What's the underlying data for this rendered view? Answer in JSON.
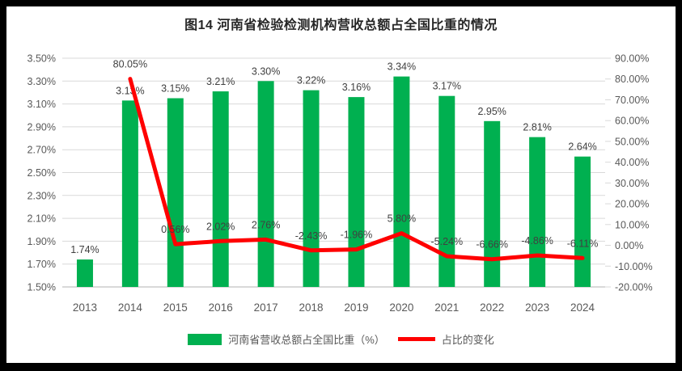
{
  "title": "图14 河南省检验检测机构营收总额占全国比重的情况",
  "colors": {
    "bar": "#00B050",
    "line": "#FF0000",
    "grid": "#D9D9D9",
    "axis_text": "#595959",
    "data_label_text": "#404040",
    "title_text": "#262626",
    "frame": "#000000",
    "background": "#FFFFFF"
  },
  "chart_data": {
    "type": "bar",
    "subtype": "combo-bar-line-dual-axis",
    "title": "图14 河南省检验检测机构营收总额占全国比重的情况",
    "categories": [
      "2013",
      "2014",
      "2015",
      "2016",
      "2017",
      "2018",
      "2019",
      "2020",
      "2021",
      "2022",
      "2023",
      "2024"
    ],
    "series": [
      {
        "name": "河南省营收总额占全国比重（%）",
        "type": "bar",
        "axis": "left",
        "color": "#00B050",
        "values": [
          1.74,
          3.13,
          3.15,
          3.21,
          3.3,
          3.22,
          3.16,
          3.34,
          3.17,
          2.95,
          2.81,
          2.64
        ],
        "labels": [
          "1.74%",
          "3.13%",
          "3.15%",
          "3.21%",
          "3.30%",
          "3.22%",
          "3.16%",
          "3.34%",
          "3.17%",
          "2.95%",
          "2.81%",
          "2.64%"
        ]
      },
      {
        "name": "占比的变化",
        "type": "line",
        "axis": "right",
        "color": "#FF0000",
        "values": [
          null,
          80.05,
          0.56,
          2.02,
          2.76,
          -2.43,
          -1.96,
          5.8,
          -5.24,
          -6.66,
          -4.86,
          -6.11
        ],
        "labels": [
          null,
          "80.05%",
          "0.56%",
          "2.02%",
          "2.76%",
          "-2.43%",
          "-1.96%",
          "5.80%",
          "-5.24%",
          "-6.66%",
          "-4.86%",
          "-6.11%"
        ]
      }
    ],
    "left_axis": {
      "min": 1.5,
      "max": 3.5,
      "step": 0.2,
      "ticks": [
        "3.50%",
        "3.30%",
        "3.10%",
        "2.90%",
        "2.70%",
        "2.50%",
        "2.30%",
        "2.10%",
        "1.90%",
        "1.70%",
        "1.50%"
      ]
    },
    "right_axis": {
      "min": -20,
      "max": 90,
      "step": 10,
      "ticks": [
        "90.00%",
        "80.00%",
        "70.00%",
        "60.00%",
        "50.00%",
        "40.00%",
        "30.00%",
        "20.00%",
        "10.00%",
        "0.00%",
        "-10.00%",
        "-20.00%"
      ]
    },
    "grid": true,
    "legend_position": "bottom"
  }
}
